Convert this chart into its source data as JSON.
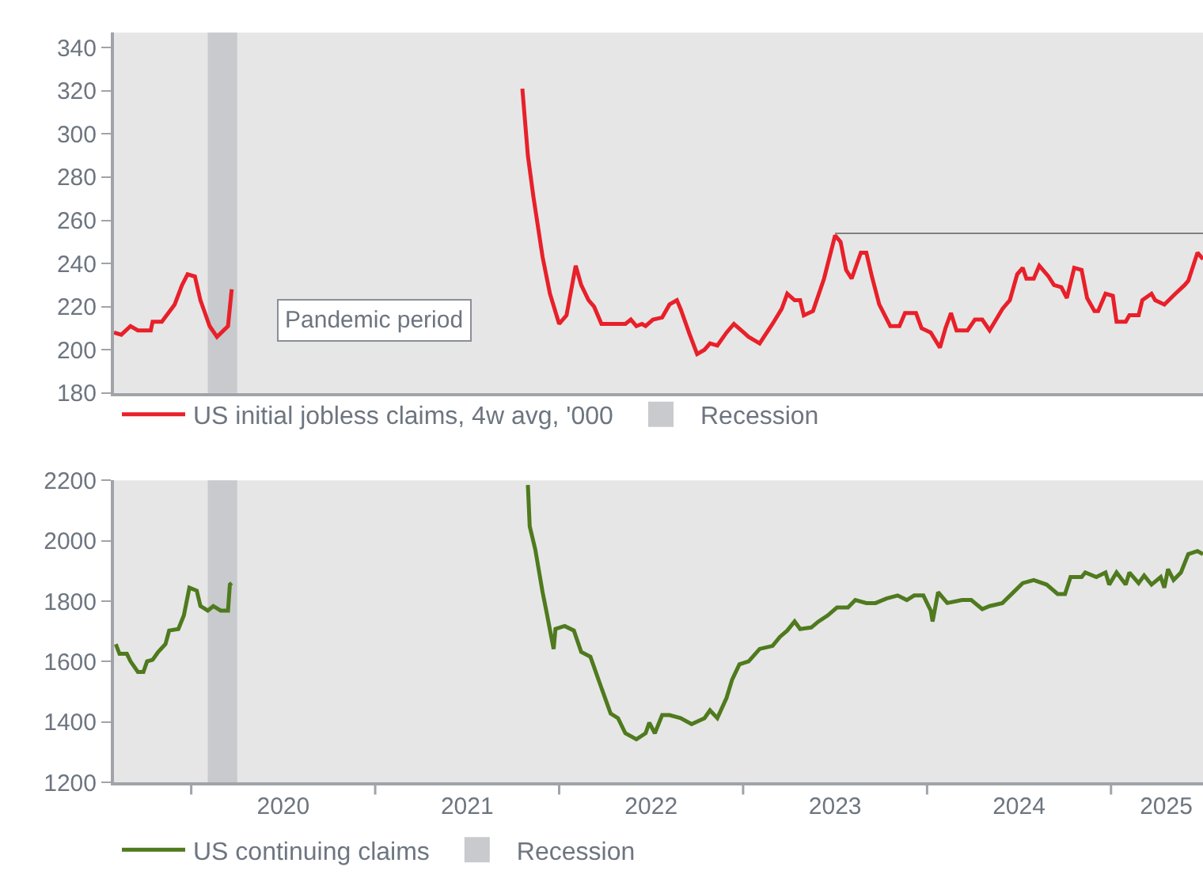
{
  "chart_data": [
    {
      "type": "line",
      "xlim": [
        2019.58,
        2025.5
      ],
      "ylim": [
        180,
        347
      ],
      "yticks": [
        180,
        200,
        220,
        240,
        260,
        280,
        300,
        320,
        340
      ],
      "tick_labels": "y",
      "grid": false,
      "legend": "bottom",
      "annotations": [
        "Pandemic period"
      ],
      "bands": [
        {
          "axis": "x",
          "from": 2020.09,
          "to": 2020.25,
          "label": "Recession",
          "color": "#c8cacd"
        }
      ],
      "series": [
        {
          "name": "US initial jobless claims, 4w avg, '000",
          "color": "#e8202a",
          "x": [
            2019.58,
            2019.62,
            2019.67,
            2019.71,
            2019.78,
            2019.79,
            2019.84,
            2019.91,
            2019.95,
            2019.98,
            2020.02,
            2020.05,
            2020.1,
            2020.14,
            2020.2,
            2020.22,
            2020.23,
            2020.5,
            2021.72,
            2021.76,
            2021.8,
            2021.83,
            2021.86,
            2021.91,
            2021.95,
            2022.0,
            2022.04,
            2022.09,
            2022.12,
            2022.16,
            2022.19,
            2022.23,
            2022.36,
            2022.39,
            2022.42,
            2022.45,
            2022.47,
            2022.51,
            2022.56,
            2022.6,
            2022.64,
            2022.66,
            2022.71,
            2022.75,
            2022.79,
            2022.82,
            2022.86,
            2022.91,
            2022.95,
            2022.99,
            2023.03,
            2023.09,
            2023.16,
            2023.21,
            2023.24,
            2023.28,
            2023.31,
            2023.33,
            2023.38,
            2023.44,
            2023.5,
            2023.53,
            2023.56,
            2023.59,
            2023.64,
            2023.67,
            2023.7,
            2023.74,
            2023.8,
            2023.85,
            2023.88,
            2023.94,
            2023.97,
            2024.02,
            2024.07,
            2024.1,
            2024.13,
            2024.16,
            2024.22,
            2024.26,
            2024.3,
            2024.34,
            2024.41,
            2024.45,
            2024.49,
            2024.52,
            2024.54,
            2024.58,
            2024.61,
            2024.66,
            2024.69,
            2024.73,
            2024.76,
            2024.8,
            2024.84,
            2024.87,
            2024.91,
            2024.93,
            2024.97,
            2025.01,
            2025.03,
            2025.08,
            2025.1,
            2025.15,
            2025.17,
            2025.22,
            2025.24,
            2025.29,
            2025.35,
            2025.4,
            2025.42,
            2025.47,
            2025.5
          ],
          "values": [
            208,
            207,
            211,
            209,
            209,
            213,
            213,
            221,
            230,
            235,
            234,
            223,
            211,
            206,
            211,
            228,
            null,
            null,
            null,
            null,
            321,
            290,
            271,
            243,
            226,
            212,
            216,
            239,
            230,
            223,
            220,
            212,
            212,
            214,
            211,
            212,
            211,
            214,
            215,
            221,
            223,
            219,
            207,
            198,
            200,
            203,
            202,
            208,
            212,
            209,
            206,
            203,
            212,
            219,
            226,
            223,
            223,
            216,
            218,
            233,
            253,
            250,
            237,
            233,
            245,
            245,
            234,
            221,
            211,
            211,
            217,
            217,
            210,
            208,
            201,
            210,
            217,
            209,
            209,
            214,
            214,
            209,
            219,
            223,
            235,
            238,
            233,
            233,
            239,
            234,
            230,
            229,
            224,
            238,
            237,
            224,
            218,
            218,
            226,
            225,
            213,
            213,
            216,
            216,
            223,
            226,
            223,
            221,
            226,
            230,
            232,
            245,
            242
          ]
        },
        {
          "color": "#808080",
          "x": [
            2023.5,
            2025.5
          ],
          "values": [
            254,
            254
          ]
        }
      ]
    },
    {
      "type": "line",
      "xlim": [
        2019.58,
        2025.5
      ],
      "ylim": [
        1200,
        2200
      ],
      "yticks": [
        1200,
        1400,
        1600,
        1800,
        2000,
        2200
      ],
      "xticks": [
        {
          "value": 2020,
          "label": null
        },
        {
          "value": 2021,
          "label": null
        },
        {
          "value": 2022,
          "label": null
        },
        {
          "value": 2023,
          "label": null
        },
        {
          "value": 2024,
          "label": null
        },
        {
          "value": 2025,
          "label": null
        },
        {
          "value": 2020.5,
          "label": "2020"
        },
        {
          "value": 2021.5,
          "label": "2021"
        },
        {
          "value": 2022.5,
          "label": "2022"
        },
        {
          "value": 2023.5,
          "label": "2023"
        },
        {
          "value": 2024.5,
          "label": "2024"
        },
        {
          "value": 2025.3,
          "label": "2025"
        }
      ],
      "grid": false,
      "legend": "bottom",
      "bands": [
        {
          "axis": "x",
          "from": 2020.09,
          "to": 2020.25,
          "label": "Recession",
          "color": "#c8cacd"
        }
      ],
      "series": [
        {
          "name": "US continuing claims",
          "color": "#4f7a1e",
          "x": [
            2019.59,
            2019.61,
            2019.65,
            2019.67,
            2019.71,
            2019.74,
            2019.76,
            2019.79,
            2019.82,
            2019.86,
            2019.88,
            2019.93,
            2019.96,
            2019.99,
            2020.03,
            2020.05,
            2020.09,
            2020.12,
            2020.16,
            2020.2,
            2020.21,
            2020.22,
            2020.23,
            2020.5,
            2021.82,
            2021.83,
            2021.84,
            2021.87,
            2021.91,
            2021.93,
            2021.97,
            2021.98,
            2022.03,
            2022.08,
            2022.12,
            2022.17,
            2022.22,
            2022.28,
            2022.32,
            2022.36,
            2022.42,
            2022.47,
            2022.49,
            2022.52,
            2022.56,
            2022.6,
            2022.66,
            2022.72,
            2022.79,
            2022.82,
            2022.86,
            2022.91,
            2022.94,
            2022.98,
            2023.03,
            2023.09,
            2023.16,
            2023.2,
            2023.24,
            2023.28,
            2023.31,
            2023.37,
            2023.41,
            2023.46,
            2023.51,
            2023.57,
            2023.61,
            2023.67,
            2023.72,
            2023.78,
            2023.84,
            2023.89,
            2023.93,
            2023.98,
            2024.02,
            2024.03,
            2024.06,
            2024.11,
            2024.19,
            2024.24,
            2024.3,
            2024.34,
            2024.41,
            2024.47,
            2024.52,
            2024.58,
            2024.65,
            2024.71,
            2024.75,
            2024.78,
            2024.84,
            2024.86,
            2024.92,
            2024.97,
            2024.99,
            2025.03,
            2025.08,
            2025.1,
            2025.15,
            2025.18,
            2025.22,
            2025.27,
            2025.29,
            2025.31,
            2025.34,
            2025.38,
            2025.42,
            2025.47,
            2025.5
          ],
          "values": [
            1658,
            1626,
            1626,
            1601,
            1566,
            1566,
            1601,
            1606,
            1632,
            1658,
            1703,
            1708,
            1753,
            1845,
            1835,
            1784,
            1769,
            1784,
            1769,
            1769,
            1855,
            1860,
            null,
            null,
            null,
            2185,
            2048,
            1972,
            1830,
            1769,
            1642,
            1708,
            1718,
            1703,
            1632,
            1616,
            1530,
            1428,
            1413,
            1363,
            1343,
            1363,
            1398,
            1363,
            1423,
            1423,
            1413,
            1393,
            1413,
            1439,
            1413,
            1480,
            1540,
            1591,
            1601,
            1642,
            1652,
            1682,
            1703,
            1733,
            1708,
            1713,
            1733,
            1753,
            1779,
            1779,
            1804,
            1794,
            1794,
            1809,
            1819,
            1804,
            1819,
            1819,
            1769,
            1733,
            1830,
            1794,
            1804,
            1804,
            1774,
            1784,
            1794,
            1830,
            1860,
            1870,
            1855,
            1824,
            1824,
            1880,
            1880,
            1895,
            1880,
            1895,
            1855,
            1895,
            1855,
            1895,
            1860,
            1885,
            1855,
            1880,
            1845,
            1906,
            1870,
            1895,
            1956,
            1966,
            1956
          ]
        }
      ]
    }
  ]
}
